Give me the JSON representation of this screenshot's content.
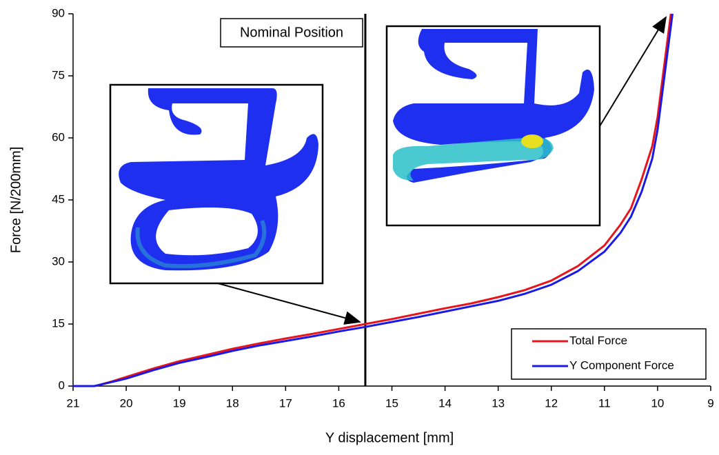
{
  "chart_data": {
    "type": "line",
    "xlabel": "Y displacement [mm]",
    "ylabel": "Force [N/200mm]",
    "annotation": "Nominal Position",
    "vline": 15.5,
    "xlim": [
      21,
      9
    ],
    "ylim": [
      0,
      90
    ],
    "xticks": [
      21,
      20,
      19,
      18,
      17,
      16,
      15,
      14,
      13,
      12,
      11,
      10,
      9
    ],
    "yticks": [
      0,
      15,
      30,
      45,
      60,
      75,
      90
    ],
    "legend": "lower right",
    "grid": false,
    "series": [
      {
        "name": "Total Force",
        "color": "#e8141c",
        "x": [
          21,
          20.6,
          20.5,
          20.3,
          20,
          19.5,
          19,
          18.5,
          18,
          17.5,
          17,
          16.5,
          16,
          15.5,
          15,
          14.5,
          14,
          13.5,
          13,
          12.5,
          12,
          11.5,
          11,
          10.7,
          10.5,
          10.3,
          10.1,
          10,
          9.9,
          9.8,
          9.75
        ],
        "values": [
          0,
          0,
          0.3,
          1,
          2.2,
          4.2,
          6,
          7.5,
          9,
          10.3,
          11.5,
          12.6,
          13.8,
          15,
          16.2,
          17.5,
          18.8,
          20,
          21.5,
          23.2,
          25.5,
          29,
          34,
          39,
          43,
          50,
          58,
          65,
          75,
          85,
          90
        ]
      },
      {
        "name": "Y Component Force",
        "color": "#1a1ae6",
        "x": [
          21,
          20.6,
          20.4,
          20,
          19.5,
          19,
          18.5,
          18,
          17.5,
          17,
          16.5,
          16,
          15.5,
          15,
          14.5,
          14,
          13.5,
          13,
          12.5,
          12,
          11.5,
          11,
          10.7,
          10.5,
          10.3,
          10.1,
          10,
          9.9,
          9.8,
          9.72
        ],
        "values": [
          0,
          0,
          0.6,
          1.8,
          3.8,
          5.6,
          7,
          8.5,
          9.8,
          10.9,
          12,
          13.2,
          14.3,
          15.5,
          16.7,
          18,
          19.3,
          20.6,
          22.3,
          24.5,
          27.8,
          32.5,
          37,
          41,
          47,
          55,
          62,
          72,
          82,
          90
        ]
      }
    ]
  }
}
